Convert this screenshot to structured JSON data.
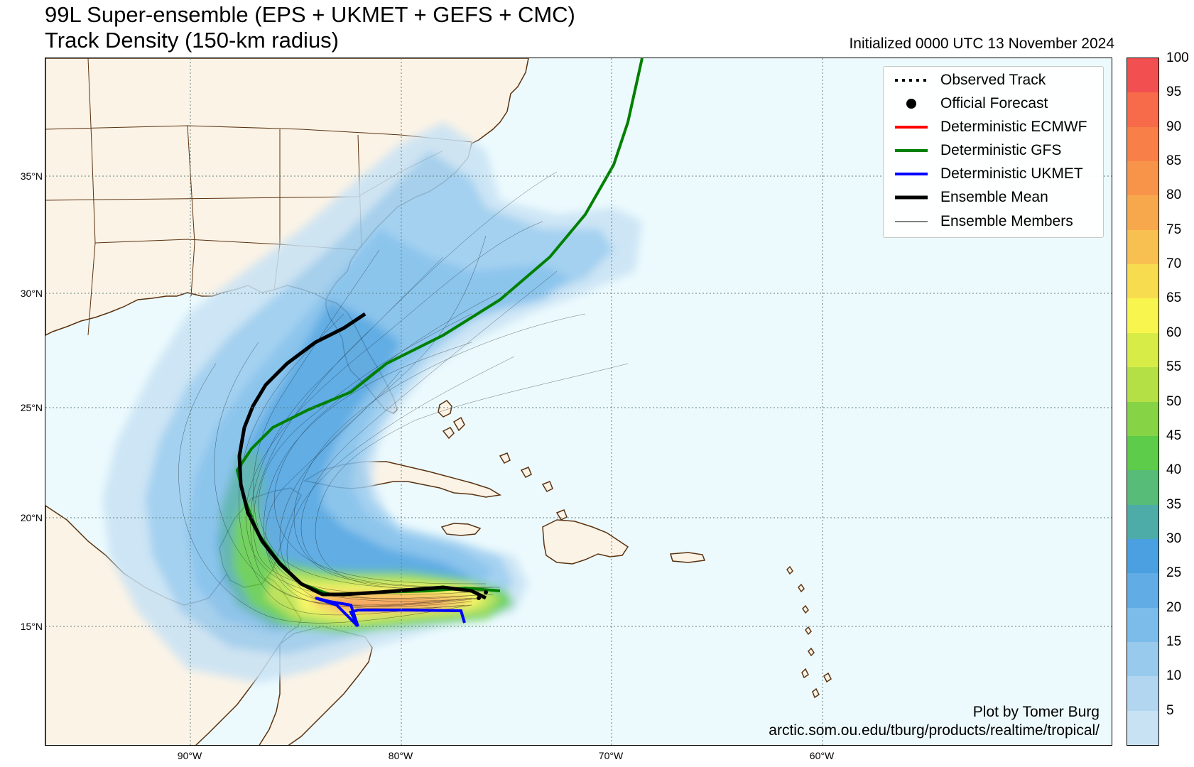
{
  "header": {
    "title_line1": "99L Super-ensemble (EPS + UKMET + GEFS + CMC)",
    "title_line2": "Track Density (150-km radius)",
    "initialized": "Initialized 0000 UTC 13 November 2024"
  },
  "axes": {
    "latitudes": [
      "35°N",
      "30°N",
      "25°N",
      "20°N",
      "15°N"
    ],
    "longitudes": [
      "90°W",
      "80°W",
      "70°W",
      "60°W"
    ]
  },
  "legend": {
    "items": [
      {
        "label": "Observed Track",
        "style": "dotted",
        "color": "#000000"
      },
      {
        "label": "Official Forecast",
        "style": "dot",
        "color": "#000000"
      },
      {
        "label": "Deterministic ECMWF",
        "style": "line",
        "color": "#ff0000"
      },
      {
        "label": "Deterministic GFS",
        "style": "line",
        "color": "#008000"
      },
      {
        "label": "Deterministic UKMET",
        "style": "line",
        "color": "#0000ff"
      },
      {
        "label": "Ensemble Mean",
        "style": "line",
        "color": "#000000"
      },
      {
        "label": "Ensemble Members",
        "style": "thin",
        "color": "#000000"
      }
    ]
  },
  "credit": {
    "line1": "Plot by Tomer Burg",
    "line2": "arctic.som.ou.edu/tburg/products/realtime/tropical/"
  },
  "colorbar": {
    "labels": [
      "100",
      "95",
      "90",
      "85",
      "80",
      "75",
      "70",
      "65",
      "60",
      "55",
      "50",
      "45",
      "40",
      "35",
      "30",
      "25",
      "20",
      "15",
      "10",
      "5"
    ],
    "colors": [
      "#f25050",
      "#f76a4a",
      "#f88048",
      "#f8944a",
      "#f8a84c",
      "#f8c050",
      "#f8dc50",
      "#f8f64e",
      "#d8ec48",
      "#b4e046",
      "#86d446",
      "#5ccc4a",
      "#56bc78",
      "#4eaca8",
      "#4aa0e0",
      "#62ace6",
      "#7cbcea",
      "#98caee",
      "#b2d6f0",
      "#c8e2f4"
    ]
  },
  "map_colors": {
    "ocean": "#ecfafd",
    "land": "#fbf3e6",
    "coast": "#5a3210",
    "grid": "#5f7f7f"
  }
}
